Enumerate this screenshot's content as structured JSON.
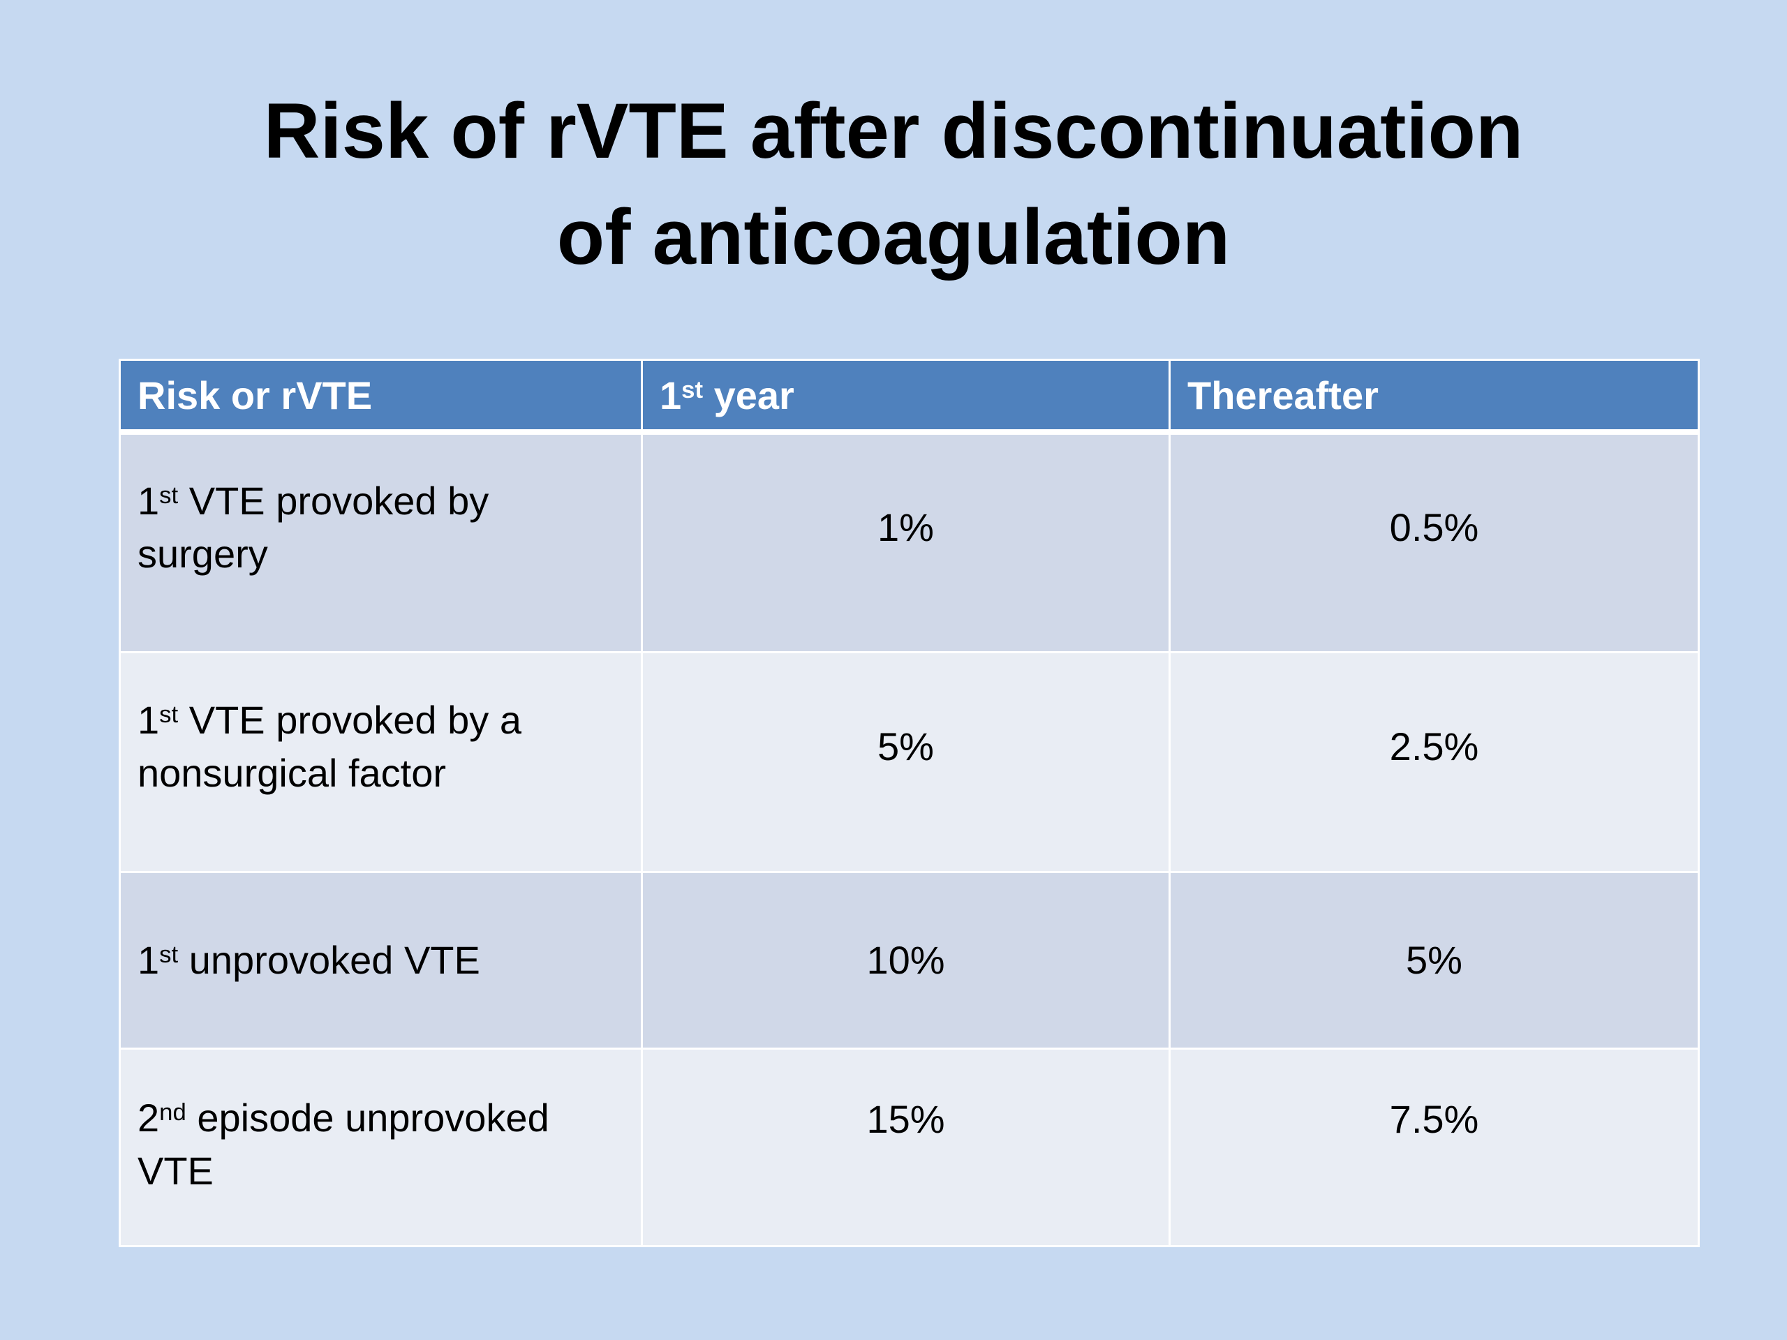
{
  "title": {
    "line1": "Risk of rVTE after discontinuation",
    "line2": "of anticoagulation"
  },
  "table": {
    "headers": [
      {
        "pre": "Risk or rVTE",
        "sup": "",
        "post": ""
      },
      {
        "pre": "1",
        "sup": "st",
        "post": " year"
      },
      {
        "pre": "Thereafter",
        "sup": "",
        "post": ""
      }
    ],
    "rows": [
      {
        "label_pre": "1",
        "label_sup": "st",
        "label_post": " VTE provoked by surgery",
        "first_year": "1%",
        "thereafter": "0.5%"
      },
      {
        "label_pre": "1",
        "label_sup": "st",
        "label_post": " VTE provoked by a nonsurgical factor",
        "first_year": "5%",
        "thereafter": "2.5%"
      },
      {
        "label_pre": "1",
        "label_sup": "st",
        "label_post": " unprovoked VTE",
        "first_year": "10%",
        "thereafter": "5%"
      },
      {
        "label_pre": "2",
        "label_sup": "nd",
        "label_post": " episode unprovoked VTE",
        "first_year": "15%",
        "thereafter": "7.5%"
      }
    ]
  },
  "colors": {
    "background": "#c6d9f1",
    "header_fill": "#4f81bd",
    "row_band_dark": "#d0d8e8",
    "row_band_light": "#e9edf4"
  }
}
